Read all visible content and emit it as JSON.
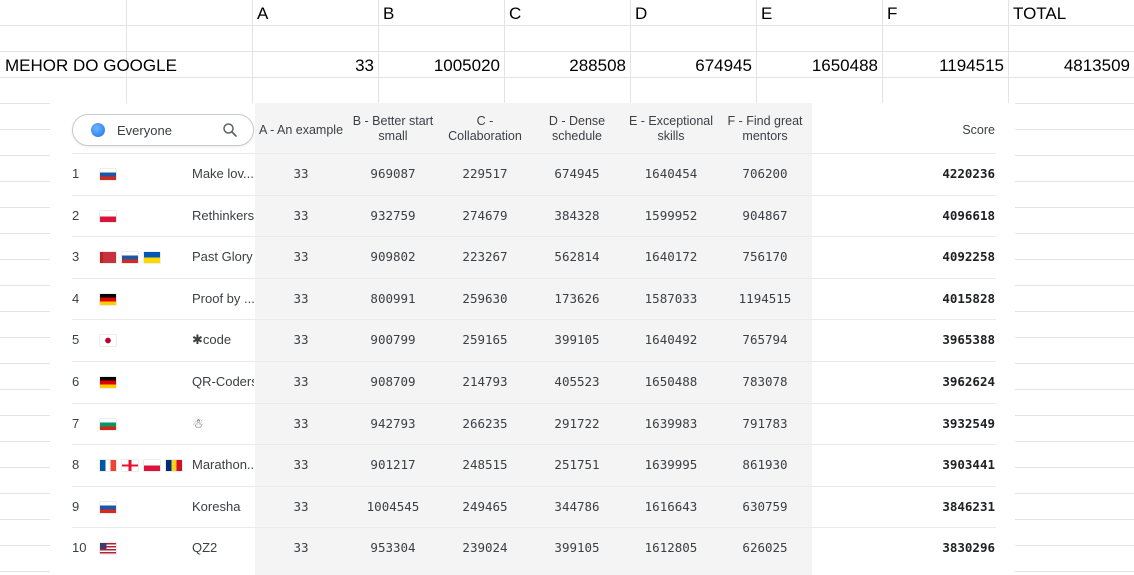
{
  "sheet": {
    "columns": [
      "A",
      "B",
      "C",
      "D",
      "E",
      "F",
      "TOTAL"
    ],
    "row_label": "MEHOR DO GOOGLE",
    "row_values": [
      "33",
      "1005020",
      "288508",
      "674945",
      "1650488",
      "1194515",
      "4813509"
    ]
  },
  "leaderboard": {
    "filter_label": "Everyone",
    "headers": [
      "A - An example",
      "B - Better start\nsmall",
      "C -\nCollaboration",
      "D - Dense\nschedule",
      "E - Exceptional\nskills",
      "F - Find great\nmentors",
      "Score"
    ],
    "rows": [
      {
        "rank": "1",
        "flags": [
          "ru"
        ],
        "name": "Make lov...",
        "a": "33",
        "b": "969087",
        "c": "229517",
        "d": "674945",
        "e": "1640454",
        "f": "706200",
        "score": "4220236"
      },
      {
        "rank": "2",
        "flags": [
          "pl"
        ],
        "name": "Rethinkers",
        "a": "33",
        "b": "932759",
        "c": "274679",
        "d": "384328",
        "e": "1599952",
        "f": "904867",
        "score": "4096618"
      },
      {
        "rank": "3",
        "flags": [
          "by",
          "ru",
          "ua"
        ],
        "name": "Past Glory",
        "a": "33",
        "b": "909802",
        "c": "223267",
        "d": "562814",
        "e": "1640172",
        "f": "756170",
        "score": "4092258"
      },
      {
        "rank": "4",
        "flags": [
          "de"
        ],
        "name": "Proof by ...",
        "a": "33",
        "b": "800991",
        "c": "259630",
        "d": "173626",
        "e": "1587033",
        "f": "1194515",
        "score": "4015828"
      },
      {
        "rank": "5",
        "flags": [
          "jp"
        ],
        "name": "✱code",
        "a": "33",
        "b": "900799",
        "c": "259165",
        "d": "399105",
        "e": "1640492",
        "f": "765794",
        "score": "3965388"
      },
      {
        "rank": "6",
        "flags": [
          "de"
        ],
        "name": "QR-Coders",
        "a": "33",
        "b": "908709",
        "c": "214793",
        "d": "405523",
        "e": "1650488",
        "f": "783078",
        "score": "3962624"
      },
      {
        "rank": "7",
        "flags": [
          "bg"
        ],
        "name": "☃",
        "a": "33",
        "b": "942793",
        "c": "266235",
        "d": "291722",
        "e": "1639983",
        "f": "791783",
        "score": "3932549"
      },
      {
        "rank": "8",
        "flags": [
          "fr",
          "ge",
          "pl",
          "ro"
        ],
        "name": "Marathon...",
        "a": "33",
        "b": "901217",
        "c": "248515",
        "d": "251751",
        "e": "1639995",
        "f": "861930",
        "score": "3903441"
      },
      {
        "rank": "9",
        "flags": [
          "ru"
        ],
        "name": "Koresha",
        "a": "33",
        "b": "1004545",
        "c": "249465",
        "d": "344786",
        "e": "1616643",
        "f": "630759",
        "score": "3846231"
      },
      {
        "rank": "10",
        "flags": [
          "us"
        ],
        "name": "QZ2",
        "a": "33",
        "b": "953304",
        "c": "239024",
        "d": "399105",
        "e": "1612805",
        "f": "626025",
        "score": "3830296"
      }
    ]
  }
}
